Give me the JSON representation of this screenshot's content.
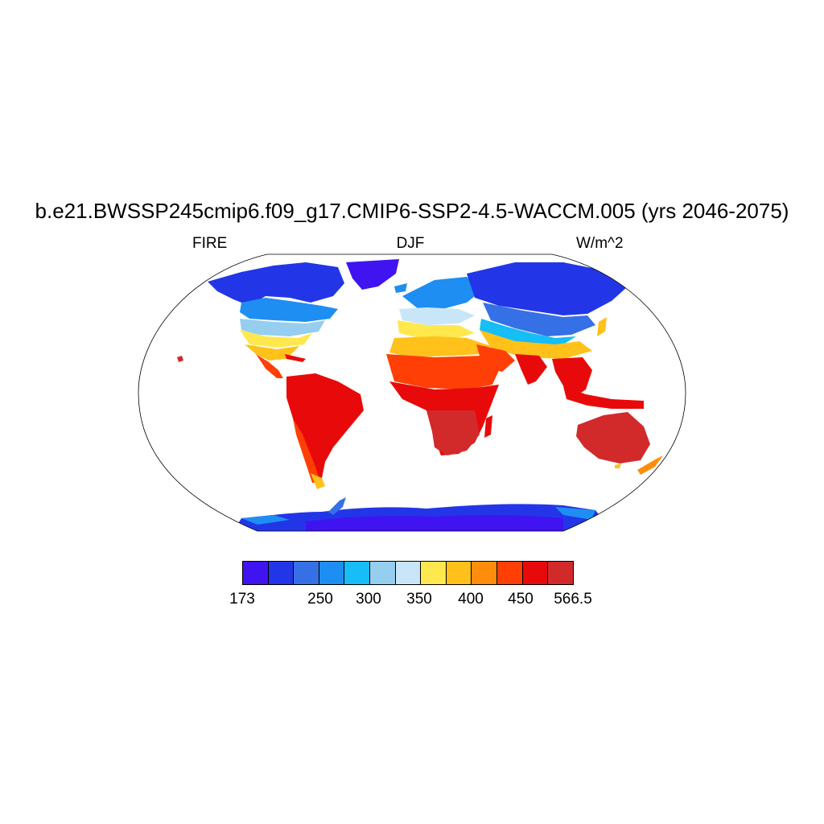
{
  "title": "b.e21.BWSSP245cmip6.f09_g17.CMIP6-SSP2-4.5-WACCM.005 (yrs 2046-2075)",
  "subtitle_left": "FIRE",
  "subtitle_center": "DJF",
  "subtitle_right": "W/m^2",
  "map": {
    "projection": "robinson",
    "variable": "FIRE",
    "season": "DJF",
    "units": "W/m^2"
  },
  "colorbar": {
    "colors": [
      "#3f14f0",
      "#2236e8",
      "#3670e6",
      "#1e8ef2",
      "#16bdf6",
      "#96cef0",
      "#c8e6f8",
      "#ffe84e",
      "#ffc11a",
      "#ff8c0a",
      "#ff3f05",
      "#e80a0a",
      "#d22a2a"
    ],
    "labels": [
      {
        "text": "173",
        "index": 0
      },
      {
        "text": "250",
        "index": 2
      },
      {
        "text": "300",
        "index": 3
      },
      {
        "text": "350",
        "index": 4
      },
      {
        "text": "400",
        "index": 5
      },
      {
        "text": "450",
        "index": 6
      },
      {
        "text": "566.5",
        "index": 7
      }
    ]
  }
}
